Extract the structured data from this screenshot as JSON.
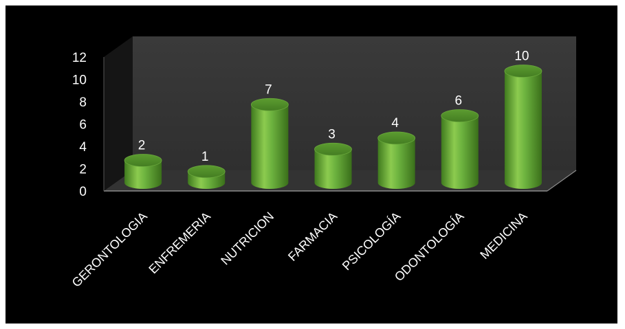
{
  "chart_data": {
    "type": "bar",
    "style": "3d-cylinder",
    "categories": [
      "GERONTOLOGIA",
      "ENFREMERIA",
      "NUTRICION",
      "FARMACIA",
      "PSICOLOGÍA",
      "ODONTOLOGÍA",
      "MEDICINA"
    ],
    "values": [
      2,
      1,
      7,
      3,
      4,
      6,
      10
    ],
    "value_labels": [
      "2",
      "1",
      "7",
      "3",
      "4",
      "6",
      "10"
    ],
    "yticks": [
      0,
      2,
      4,
      6,
      8,
      10,
      12
    ],
    "ylim": [
      0,
      12
    ],
    "title": "",
    "xlabel": "",
    "ylabel": "",
    "grid": false,
    "legend": "none",
    "colors": {
      "background": "#000000",
      "bar": "#6db33f",
      "bar_dark": "#3f7a1e",
      "bar_light": "#a5dc6a",
      "bar_top": "#4f8f28",
      "back_wall": "#3c3c3c",
      "floor": "#333333",
      "axis": "#8c8c8c",
      "text": "#ffffff"
    }
  }
}
